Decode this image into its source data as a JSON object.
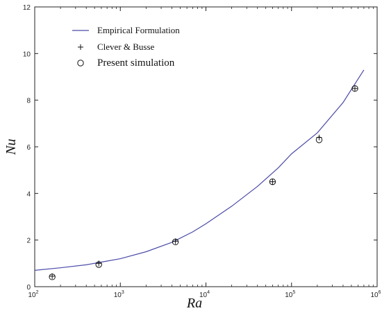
{
  "chart_data": {
    "type": "scatter",
    "title": "",
    "xlabel": "Ra",
    "ylabel": "Nu",
    "xscale": "log",
    "xlim": [
      100,
      1000000
    ],
    "ylim": [
      0,
      12
    ],
    "grid": false,
    "legend_position": "top-left",
    "x_tick_labels": [
      "10",
      "10",
      "10",
      "10",
      "10"
    ],
    "x_tick_exponents": [
      "2",
      "3",
      "4",
      "5",
      "6"
    ],
    "y_ticks": [
      0,
      2,
      4,
      6,
      8,
      10,
      12
    ],
    "y_tick_labels": [
      "0",
      "2",
      "4",
      "6",
      "8",
      "10",
      "12"
    ],
    "legend": [
      {
        "label": "Empirical Formulation",
        "marker": "line"
      },
      {
        "label": "Clever & Busse",
        "marker": "plus"
      },
      {
        "label": "Present simulation",
        "marker": "circle"
      }
    ],
    "series": [
      {
        "name": "Empirical Formulation",
        "type": "line",
        "color": "#4a4aa8",
        "x": [
          100,
          200,
          400,
          700,
          1000,
          2000,
          4000,
          7000,
          10000,
          20000,
          40000,
          70000,
          100000,
          200000,
          400000,
          700000
        ],
        "y": [
          0.7,
          0.81,
          0.94,
          1.1,
          1.2,
          1.5,
          1.9,
          2.35,
          2.7,
          3.45,
          4.3,
          5.1,
          5.7,
          6.6,
          7.9,
          9.3
        ]
      },
      {
        "name": "Clever & Busse",
        "type": "scatter",
        "marker": "plus",
        "x": [
          160,
          560,
          4400,
          60000,
          210000,
          550000
        ],
        "y": [
          0.45,
          1.0,
          1.95,
          4.5,
          6.4,
          8.5
        ]
      },
      {
        "name": "Present simulation",
        "type": "scatter",
        "marker": "circle",
        "x": [
          160,
          560,
          4400,
          60000,
          210000,
          550000
        ],
        "y": [
          0.42,
          0.95,
          1.92,
          4.5,
          6.3,
          8.5
        ]
      }
    ]
  }
}
